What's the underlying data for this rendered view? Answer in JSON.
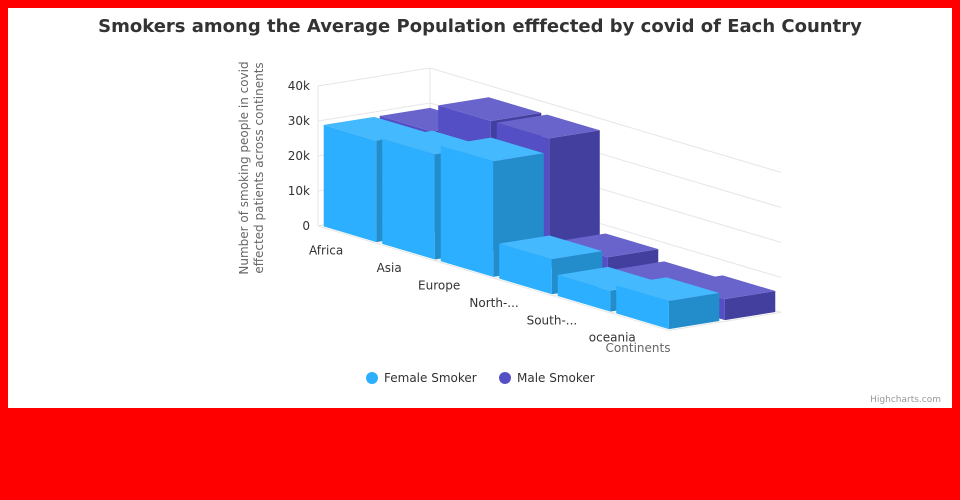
{
  "chart_data": {
    "type": "bar",
    "title": "Smokers among the Average Population efffected by covid of Each Country",
    "categories": [
      "Africa",
      "Asia",
      "Europe",
      "North-...",
      "South-...",
      "oceania"
    ],
    "xlabel": "Continents",
    "ylabel_lines": [
      "Number of smoking people in covid",
      "effected patients across continents"
    ],
    "ylim": [
      0,
      40000
    ],
    "y_ticks": [
      0,
      10000,
      20000,
      30000,
      40000
    ],
    "y_tick_labels": [
      "0",
      "10k",
      "20k",
      "30k",
      "40k"
    ],
    "series": [
      {
        "name": "Female Smoker",
        "color": "#2caffe",
        "values": [
          29000,
          30000,
          33000,
          10000,
          6000,
          8000
        ]
      },
      {
        "name": "Male Smoker",
        "color": "#544fc5",
        "values": [
          29000,
          37000,
          37000,
          8000,
          5000,
          6000
        ]
      }
    ],
    "grid": true,
    "legend_position": "bottom"
  },
  "credits": "Highcharts.com"
}
